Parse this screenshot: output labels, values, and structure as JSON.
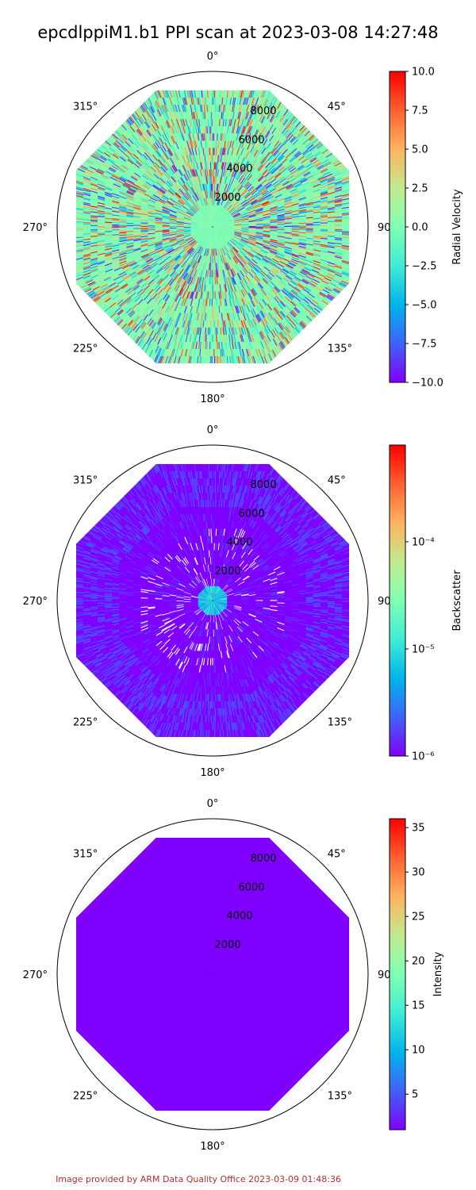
{
  "figure": {
    "title": "epcdlppiM1.b1 PPI scan at 2023-03-08 14:27:48",
    "credit": "Image provided by ARM Data Quality Office 2023-03-09 01:48:36"
  },
  "chart_data": [
    {
      "type": "heatmap",
      "projection": "polar",
      "theta_zero": "N",
      "theta_direction": "clockwise",
      "angle_labels": [
        "0°",
        "45°",
        "90°",
        "135°",
        "180°",
        "225°",
        "270°",
        "315°"
      ],
      "radial_ticks": [
        "2000",
        "4000",
        "6000",
        "8000"
      ],
      "rmax": 10000,
      "wedge_rmax": 9500,
      "n_sides": 8,
      "ring_radii": [
        500,
        1000,
        1500,
        2000,
        2500,
        3000,
        3500,
        4000,
        4500,
        5000,
        5500,
        6000,
        6500,
        7000,
        7500,
        8000,
        8500,
        9000,
        9500
      ],
      "colorbar": {
        "label": "Radial Velocity",
        "scale": "linear",
        "vmin": -10.0,
        "vmax": 10.0,
        "ticks": [
          "10.0",
          "7.5",
          "5.0",
          "2.5",
          "0.0",
          "−2.5",
          "−5.0",
          "−7.5",
          "−10.0"
        ],
        "tick_values": [
          10,
          7.5,
          5,
          2.5,
          0,
          -2.5,
          -5,
          -7.5,
          -10
        ],
        "cmap": "rainbow"
      },
      "pattern": "noisy-velocity",
      "dominant_color": "#80ffb4"
    },
    {
      "type": "heatmap",
      "projection": "polar",
      "theta_zero": "N",
      "theta_direction": "clockwise",
      "angle_labels": [
        "0°",
        "45°",
        "90°",
        "135°",
        "180°",
        "225°",
        "270°",
        "315°"
      ],
      "radial_ticks": [
        "2000",
        "4000",
        "6000",
        "8000"
      ],
      "rmax": 10000,
      "wedge_rmax": 9500,
      "n_sides": 8,
      "ring_radii": [
        500,
        1000,
        1500,
        2000,
        2500,
        3000,
        3500,
        4000,
        4500,
        5000,
        5500,
        6000,
        6500,
        7000,
        7500,
        8000,
        8500,
        9000,
        9500
      ],
      "colorbar": {
        "label": "Backscatter",
        "scale": "log",
        "vmin": 1e-06,
        "vmax": 0.0008,
        "ticks": [
          "10⁻⁴",
          "10⁻⁵",
          "10⁻⁶"
        ],
        "tick_values": [
          0.0001,
          1e-05,
          1e-06
        ],
        "cmap": "rainbow"
      },
      "pattern": "low-backscatter-with-gaps",
      "dominant_color": "#8000ff"
    },
    {
      "type": "heatmap",
      "projection": "polar",
      "theta_zero": "N",
      "theta_direction": "clockwise",
      "angle_labels": [
        "0°",
        "45°",
        "90°",
        "135°",
        "180°",
        "225°",
        "270°",
        "315°"
      ],
      "radial_ticks": [
        "2000",
        "4000",
        "6000",
        "8000"
      ],
      "rmax": 10000,
      "wedge_rmax": 9500,
      "n_sides": 8,
      "ring_radii": [
        9500
      ],
      "colorbar": {
        "label": "Intensity",
        "scale": "linear",
        "vmin": 1.0,
        "vmax": 36.0,
        "ticks": [
          "35",
          "30",
          "25",
          "20",
          "15",
          "10",
          "5"
        ],
        "tick_values": [
          35,
          30,
          25,
          20,
          15,
          10,
          5
        ],
        "cmap": "rainbow"
      },
      "pattern": "uniform",
      "dominant_color": "#8000ff"
    }
  ]
}
